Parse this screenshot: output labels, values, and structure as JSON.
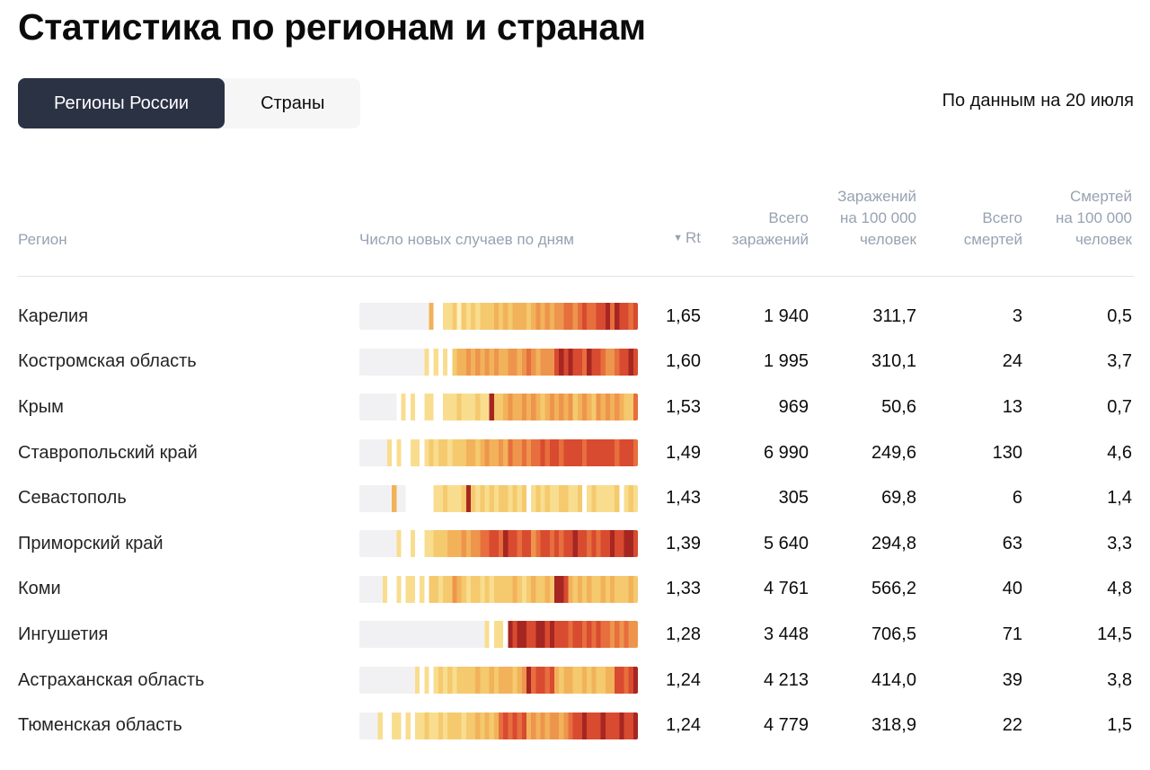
{
  "page": {
    "title": "Статистика по регионам и странам",
    "as_of": "По данным на 20 июля"
  },
  "tabs": {
    "regions": "Регионы России",
    "countries": "Страны"
  },
  "table": {
    "headers": {
      "region": "Регион",
      "daily": "Число новых случаев по дням",
      "sort_icon": "▼",
      "rt": "Rt",
      "total_infected": "Всего\nзаражений",
      "infected_per_100k": "Заражений\nна 100 000\nчеловек",
      "total_deaths": "Всего\nсмертей",
      "deaths_per_100k": "Смертей\nна 100 000\nчеловек"
    },
    "rows": [
      {
        "name": "Карелия",
        "rt": "1,65",
        "total_infected": "1 940",
        "infected_per_100k": "311,7",
        "total_deaths": "3",
        "deaths_per_100k": "0,5",
        "daily_heatmap": "000000000000000511334243434445454555456565667767877889798878"
      },
      {
        "name": "Костромская область",
        "rt": "1,60",
        "total_infected": "1 995",
        "infected_per_100k": "310,1",
        "total_deaths": "24",
        "deaths_per_100k": "3,7",
        "daily_heatmap": "000000000000003131314556565656556656765666898988798876678898"
      },
      {
        "name": "Крым",
        "rt": "1,53",
        "total_infected": "969",
        "infected_per_100k": "50,6",
        "total_deaths": "13",
        "deaths_per_100k": "0,7",
        "daily_heatmap": "000000001313113311333433343394456556565456565645654656565447"
      },
      {
        "name": "Ставропольский край",
        "rt": "1,49",
        "total_infected": "6 990",
        "infected_per_100k": "249,6",
        "total_deaths": "130",
        "deaths_per_100k": "4,6",
        "daily_heatmap": "000000313113313434434445545655657667677878878888788888878887"
      },
      {
        "name": "Севастополь",
        "rt": "1,43",
        "total_infected": "305",
        "infected_per_100k": "69,8",
        "total_deaths": "6",
        "deaths_per_100k": "1,4",
        "daily_heatmap": "000000050011111133433349434343443434134343344334134333341343"
      },
      {
        "name": "Приморский край",
        "rt": "1,39",
        "total_infected": "5 640",
        "infected_per_100k": "294,8",
        "total_deaths": "63",
        "deaths_per_100k": "3,3",
        "daily_heatmap": "000000003113113344455565667788798878867887878898878788988998"
      },
      {
        "name": "Коми",
        "rt": "1,33",
        "total_infected": "4 761",
        "infected_per_100k": "566,2",
        "total_deaths": "40",
        "deaths_per_100k": "4,8",
        "daily_heatmap": "000003113133131443446543443434444543454454998545454454544454"
      },
      {
        "name": "Ингушетия",
        "rt": "1,28",
        "total_infected": "3 448",
        "infected_per_100k": "706,5",
        "total_deaths": "71",
        "deaths_per_100k": "14,5",
        "daily_heatmap": "000000000000000000000000000313319899889989888788787877676766"
      },
      {
        "name": "Астраханская область",
        "rt": "1,24",
        "total_infected": "4 213",
        "infected_per_100k": "414,0",
        "total_deaths": "39",
        "deaths_per_100k": "3,8",
        "daily_heatmap": "000000000000313134343444454454555456978878545544545445588789"
      },
      {
        "name": "Тюменская область",
        "rt": "1,24",
        "total_infected": "4 779",
        "infected_per_100k": "318,9",
        "total_deaths": "22",
        "deaths_per_100k": "1,5",
        "daily_heatmap": "000031133131334334344434454545787878565656656788988898889889"
      }
    ]
  },
  "heatmap_palette": {
    "0": "#f1f1f3",
    "1": "#ffffff",
    "2": "#fdf0c0",
    "3": "#f9dd8f",
    "4": "#f5c96e",
    "5": "#f2b25a",
    "6": "#ee954d",
    "7": "#e76e3d",
    "8": "#d84b30",
    "9": "#a62622"
  },
  "colors": {
    "active_tab_bg": "#2a3244",
    "active_tab_text": "#ffffff",
    "inactive_tab_bg": "#f6f6f7",
    "header_text": "#97a2b2",
    "divider": "#e3e4e8",
    "bar_empty": "#f1f1f3"
  }
}
